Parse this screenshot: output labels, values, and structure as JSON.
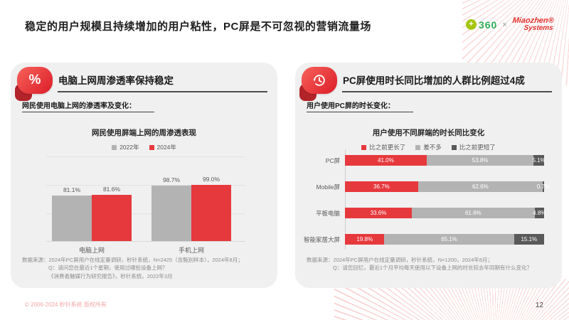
{
  "slide": {
    "title": "稳定的用户规模且持续增加的用户粘性，PC屏是不可忽视的营销流量场",
    "logo_360_text": "360",
    "logo_360_mark": "+",
    "logo_separator": "×",
    "logo_miaozhen_line1": "Miaozhen®",
    "logo_miaozhen_line2": "Systems",
    "footer_copyright": "© 2006-2024 秒针系统 版权所有",
    "page_number": "12",
    "accent_color": "#e6393d"
  },
  "left_panel": {
    "icon": "percent-icon",
    "header": "电脑上网周渗透率保持稳定",
    "subtitle": "网民使用电脑上网的渗透率及变化：",
    "source_line1": "数据来源：2024年PC屏用户在线定量调研，秒针系统，N=2425（含甄别样本），2024年8月；",
    "source_line2": "Q：请问您在最近1个星期，使用过哪些设备上网？",
    "source_line3": "《消费者触媒行为研究报告》，秒针系统，2022年3月"
  },
  "right_panel": {
    "icon": "clock-history-icon",
    "header": "PC屏使用时长同比增加的人群比例超过4成",
    "subtitle": "用户使用PC屏的时长变化：",
    "source_line1": "数据来源：2024年PC屏用户在线定量调研，秒针系统，N=1200，2024年8月；",
    "source_line2": "Q：请您回忆，最近1个月平均每天使用以下设备上网的时长较去年同期有什么变化？"
  },
  "chart_data": [
    {
      "type": "bar",
      "title": "网民使用屏端上网的周渗透表现",
      "categories": [
        "电脑上网",
        "手机上网"
      ],
      "series": [
        {
          "name": "2022年",
          "color": "#b3b3b3",
          "values": [
            81.1,
            98.7
          ]
        },
        {
          "name": "2024年",
          "color": "#e6393d",
          "values": [
            81.6,
            99.0
          ]
        }
      ],
      "value_suffix": "%",
      "ylim": [
        0,
        150
      ],
      "grid": true,
      "legend_position": "top"
    },
    {
      "type": "bar",
      "subtype": "stacked-horizontal",
      "title": "用户使用不同屏端的时长同比变化",
      "categories": [
        "PC屏",
        "Mobile屏",
        "平板电脑",
        "智能家居大屏"
      ],
      "series": [
        {
          "name": "比之前更长了",
          "color": "#e6393d",
          "values": [
            41.0,
            36.7,
            33.6,
            19.8
          ]
        },
        {
          "name": "差不多",
          "color": "#b3b3b3",
          "values": [
            53.8,
            62.6,
            61.6,
            65.1
          ]
        },
        {
          "name": "比之前更短了",
          "color": "#595959",
          "values": [
            5.1,
            0.7,
            4.8,
            15.1
          ]
        }
      ],
      "value_suffix": "%",
      "xlim": [
        0,
        100
      ],
      "legend_position": "top"
    }
  ]
}
